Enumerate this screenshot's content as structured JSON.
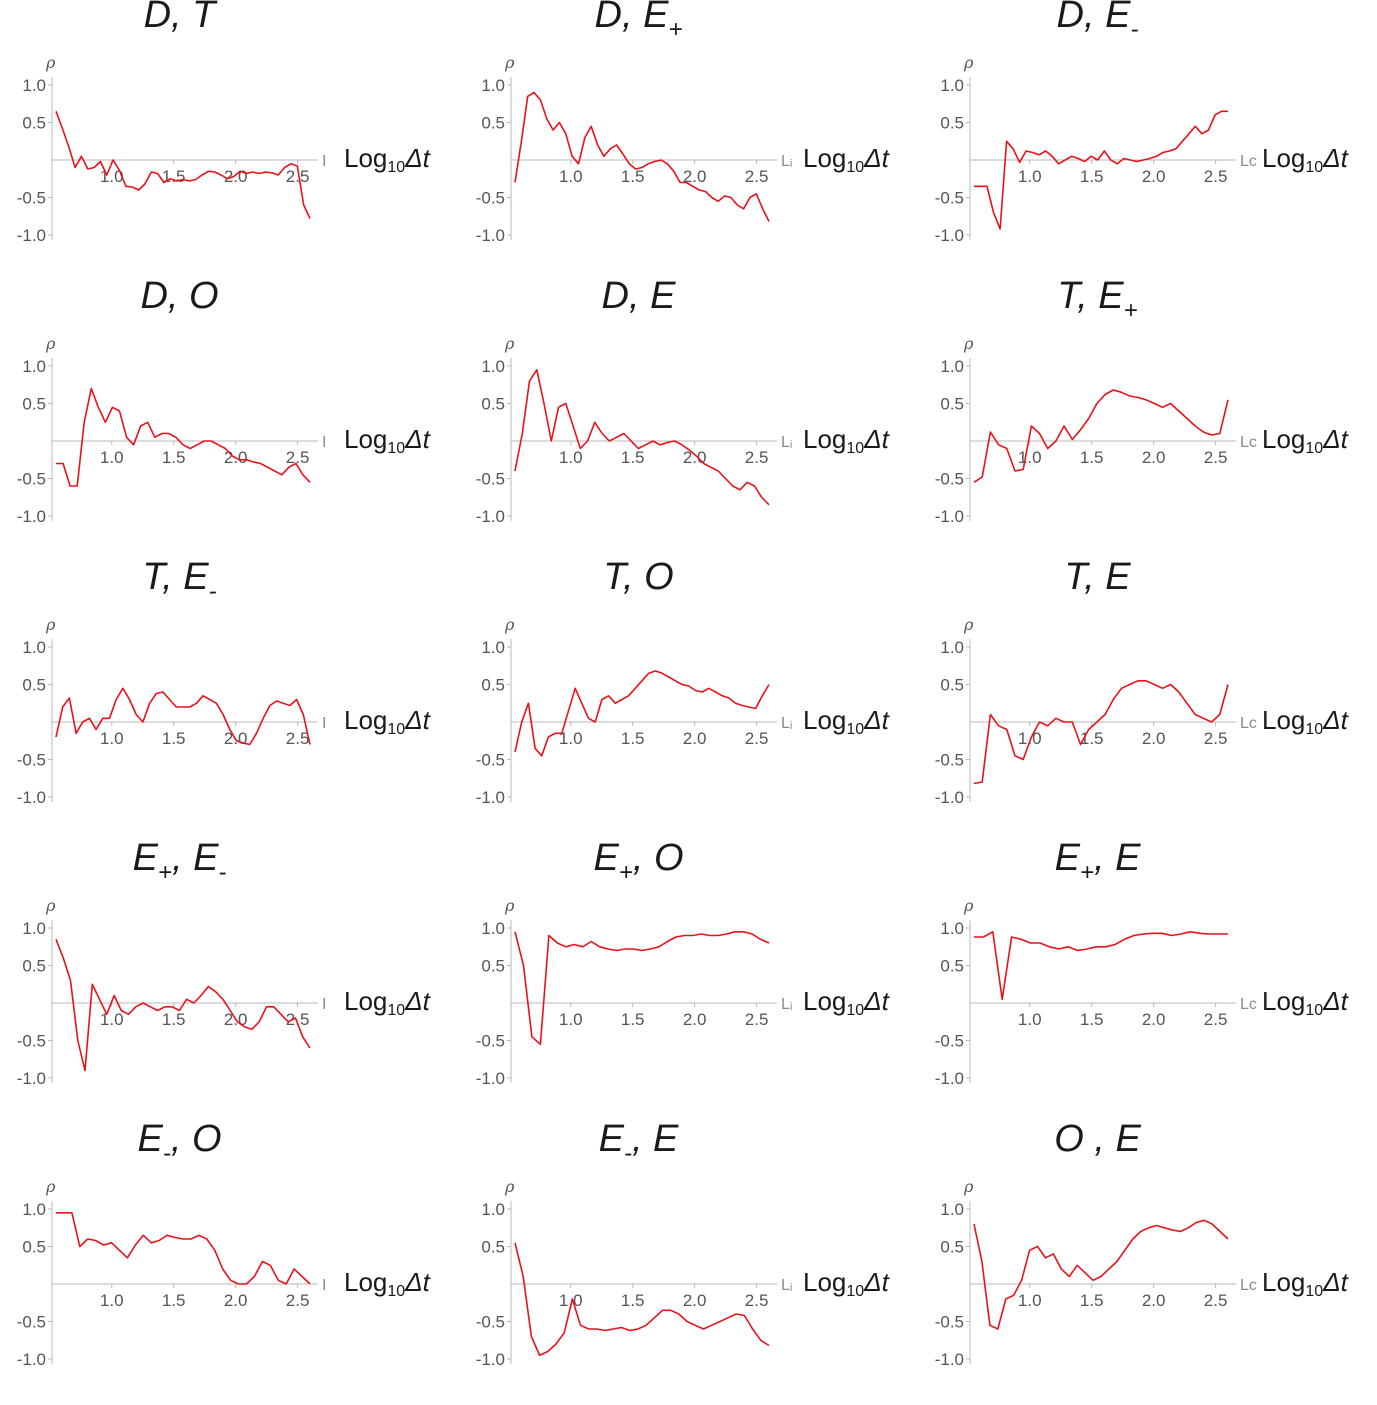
{
  "colors": {
    "series": "#e8121b",
    "axis": "#b9b9b9",
    "tick_text": "#555555"
  },
  "chart_data": [
    {
      "type": "line",
      "title_main": "D, T",
      "title_sub": "",
      "ylabel": "ρ",
      "xlabel_prefix": "Log",
      "xlabel_sub": "10",
      "xlabel_suffix": "Δt",
      "axis_cut_text": "I",
      "x_ticks": [
        "1.0",
        "1.5",
        "2.0",
        "2.5"
      ],
      "y_ticks": [
        "1.0",
        "0.5",
        "-0.5",
        "-1.0"
      ],
      "xlim": [
        0.55,
        2.6
      ],
      "ylim": [
        -1.0,
        1.0
      ],
      "series_color": "#e8121b",
      "y": [
        0.65,
        0.42,
        0.18,
        -0.1,
        0.05,
        -0.12,
        -0.1,
        -0.02,
        -0.2,
        0.0,
        -0.14,
        -0.35,
        -0.36,
        -0.4,
        -0.32,
        -0.16,
        -0.18,
        -0.3,
        -0.25,
        -0.28,
        -0.26,
        -0.28,
        -0.26,
        -0.2,
        -0.15,
        -0.16,
        -0.2,
        -0.25,
        -0.22,
        -0.15,
        -0.18,
        -0.16,
        -0.18,
        -0.16,
        -0.17,
        -0.2,
        -0.1,
        -0.05,
        -0.08,
        -0.6,
        -0.78
      ]
    },
    {
      "type": "line",
      "title_main": "D, E",
      "title_sub": "+",
      "ylabel": "ρ",
      "xlabel_prefix": "Log",
      "xlabel_sub": "10",
      "xlabel_suffix": "Δt",
      "axis_cut_text": "Lᵢ",
      "x_ticks": [
        "1.0",
        "1.5",
        "2.0",
        "2.5"
      ],
      "y_ticks": [
        "1.0",
        "0.5",
        "-0.5",
        "-1.0"
      ],
      "xlim": [
        0.55,
        2.6
      ],
      "ylim": [
        -1.0,
        1.0
      ],
      "series_color": "#e8121b",
      "y": [
        -0.3,
        0.25,
        0.85,
        0.9,
        0.8,
        0.55,
        0.4,
        0.5,
        0.35,
        0.05,
        -0.05,
        0.3,
        0.45,
        0.2,
        0.05,
        0.15,
        0.2,
        0.08,
        -0.05,
        -0.12,
        -0.1,
        -0.05,
        -0.02,
        0.0,
        -0.05,
        -0.15,
        -0.3,
        -0.3,
        -0.35,
        -0.4,
        -0.42,
        -0.5,
        -0.55,
        -0.48,
        -0.5,
        -0.6,
        -0.65,
        -0.5,
        -0.45,
        -0.65,
        -0.82
      ]
    },
    {
      "type": "line",
      "title_main": "D, E",
      "title_sub": "-",
      "ylabel": "ρ",
      "xlabel_prefix": "Log",
      "xlabel_sub": "10",
      "xlabel_suffix": "Δt",
      "axis_cut_text": "Lc",
      "x_ticks": [
        "1.0",
        "1.5",
        "2.0",
        "2.5"
      ],
      "y_ticks": [
        "1.0",
        "0.5",
        "-0.5",
        "-1.0"
      ],
      "xlim": [
        0.55,
        2.6
      ],
      "ylim": [
        -1.0,
        1.0
      ],
      "series_color": "#e8121b",
      "y": [
        -0.35,
        -0.35,
        -0.35,
        -0.7,
        -0.92,
        0.25,
        0.15,
        -0.03,
        0.12,
        0.1,
        0.07,
        0.12,
        0.05,
        -0.05,
        0.0,
        0.05,
        0.02,
        -0.02,
        0.05,
        0.0,
        0.12,
        0.0,
        -0.05,
        0.02,
        0.0,
        -0.02,
        0.0,
        0.02,
        0.05,
        0.1,
        0.12,
        0.15,
        0.25,
        0.35,
        0.45,
        0.35,
        0.4,
        0.6,
        0.65,
        0.65
      ]
    },
    {
      "type": "line",
      "title_main": "D, O",
      "title_sub": "",
      "ylabel": "ρ",
      "xlabel_prefix": "Log",
      "xlabel_sub": "10",
      "xlabel_suffix": "Δt",
      "axis_cut_text": "I",
      "x_ticks": [
        "1.0",
        "1.5",
        "2.0",
        "2.5"
      ],
      "y_ticks": [
        "1.0",
        "0.5",
        "-0.5",
        "-1.0"
      ],
      "xlim": [
        0.55,
        2.6
      ],
      "ylim": [
        -1.0,
        1.0
      ],
      "series_color": "#e8121b",
      "y": [
        -0.3,
        -0.3,
        -0.6,
        -0.6,
        0.25,
        0.7,
        0.45,
        0.25,
        0.45,
        0.4,
        0.05,
        -0.05,
        0.2,
        0.25,
        0.05,
        0.1,
        0.1,
        0.05,
        -0.05,
        -0.1,
        -0.05,
        0.0,
        0.0,
        -0.05,
        -0.1,
        -0.2,
        -0.25,
        -0.25,
        -0.28,
        -0.3,
        -0.35,
        -0.4,
        -0.45,
        -0.35,
        -0.3,
        -0.45,
        -0.55
      ]
    },
    {
      "type": "line",
      "title_main": "D, E",
      "title_sub": "",
      "ylabel": "ρ",
      "xlabel_prefix": "Log",
      "xlabel_sub": "10",
      "xlabel_suffix": "Δt",
      "axis_cut_text": "Lᵢ",
      "x_ticks": [
        "1.0",
        "1.5",
        "2.0",
        "2.5"
      ],
      "y_ticks": [
        "1.0",
        "0.5",
        "-0.5",
        "-1.0"
      ],
      "xlim": [
        0.55,
        2.6
      ],
      "ylim": [
        -1.0,
        1.0
      ],
      "series_color": "#e8121b",
      "y": [
        -0.4,
        0.1,
        0.8,
        0.95,
        0.5,
        0.0,
        0.45,
        0.5,
        0.2,
        -0.1,
        0.0,
        0.25,
        0.1,
        0.0,
        0.05,
        0.1,
        0.0,
        -0.1,
        -0.05,
        0.0,
        -0.05,
        -0.02,
        0.0,
        -0.05,
        -0.12,
        -0.2,
        -0.3,
        -0.35,
        -0.4,
        -0.5,
        -0.6,
        -0.65,
        -0.55,
        -0.6,
        -0.75,
        -0.85
      ]
    },
    {
      "type": "line",
      "title_main": "T, E",
      "title_sub": "+",
      "ylabel": "ρ",
      "xlabel_prefix": "Log",
      "xlabel_sub": "10",
      "xlabel_suffix": "Δt",
      "axis_cut_text": "Lc",
      "x_ticks": [
        "1.0",
        "1.5",
        "2.0",
        "2.5"
      ],
      "y_ticks": [
        "1.0",
        "0.5",
        "-0.5",
        "-1.0"
      ],
      "xlim": [
        0.55,
        2.6
      ],
      "ylim": [
        -1.0,
        1.0
      ],
      "series_color": "#e8121b",
      "y": [
        -0.55,
        -0.48,
        0.12,
        -0.05,
        -0.1,
        -0.4,
        -0.38,
        0.2,
        0.1,
        -0.1,
        0.0,
        0.2,
        0.02,
        0.15,
        0.3,
        0.5,
        0.62,
        0.68,
        0.65,
        0.6,
        0.58,
        0.55,
        0.5,
        0.45,
        0.5,
        0.4,
        0.3,
        0.2,
        0.12,
        0.08,
        0.1,
        0.55
      ]
    },
    {
      "type": "line",
      "title_main": "T, E",
      "title_sub": "-",
      "ylabel": "ρ",
      "xlabel_prefix": "Log",
      "xlabel_sub": "10",
      "xlabel_suffix": "Δt",
      "axis_cut_text": "I",
      "x_ticks": [
        "1.0",
        "1.5",
        "2.0",
        "2.5"
      ],
      "y_ticks": [
        "1.0",
        "0.5",
        "-0.5",
        "-1.0"
      ],
      "xlim": [
        0.55,
        2.6
      ],
      "ylim": [
        -1.0,
        1.0
      ],
      "series_color": "#e8121b",
      "y": [
        -0.2,
        0.2,
        0.32,
        -0.15,
        0.0,
        0.05,
        -0.1,
        0.05,
        0.05,
        0.3,
        0.45,
        0.3,
        0.1,
        0.0,
        0.25,
        0.38,
        0.4,
        0.3,
        0.2,
        0.2,
        0.2,
        0.25,
        0.35,
        0.3,
        0.25,
        0.1,
        -0.1,
        -0.25,
        -0.28,
        -0.3,
        -0.15,
        0.05,
        0.22,
        0.28,
        0.25,
        0.22,
        0.3,
        0.1,
        -0.3
      ]
    },
    {
      "type": "line",
      "title_main": "T, O",
      "title_sub": "",
      "ylabel": "ρ",
      "xlabel_prefix": "Log",
      "xlabel_sub": "10",
      "xlabel_suffix": "Δt",
      "axis_cut_text": "Lᵢ",
      "x_ticks": [
        "1.0",
        "1.5",
        "2.0",
        "2.5"
      ],
      "y_ticks": [
        "1.0",
        "0.5",
        "-0.5",
        "-1.0"
      ],
      "xlim": [
        0.55,
        2.6
      ],
      "ylim": [
        -1.0,
        1.0
      ],
      "series_color": "#e8121b",
      "y": [
        -0.4,
        0.0,
        0.25,
        -0.35,
        -0.45,
        -0.2,
        -0.15,
        -0.15,
        0.15,
        0.45,
        0.25,
        0.05,
        0.0,
        0.3,
        0.35,
        0.25,
        0.3,
        0.35,
        0.45,
        0.55,
        0.65,
        0.68,
        0.65,
        0.6,
        0.55,
        0.5,
        0.48,
        0.42,
        0.4,
        0.45,
        0.4,
        0.35,
        0.32,
        0.25,
        0.22,
        0.2,
        0.18,
        0.35,
        0.5
      ]
    },
    {
      "type": "line",
      "title_main": "T, E",
      "title_sub": "",
      "ylabel": "ρ",
      "xlabel_prefix": "Log",
      "xlabel_sub": "10",
      "xlabel_suffix": "Δt",
      "axis_cut_text": "Lc",
      "x_ticks": [
        "1.0",
        "1.5",
        "2.0",
        "2.5"
      ],
      "y_ticks": [
        "1.0",
        "0.5",
        "-0.5",
        "-1.0"
      ],
      "xlim": [
        0.55,
        2.6
      ],
      "ylim": [
        -1.0,
        1.0
      ],
      "series_color": "#e8121b",
      "y": [
        -0.82,
        -0.8,
        0.1,
        -0.05,
        -0.1,
        -0.45,
        -0.5,
        -0.2,
        0.0,
        -0.05,
        0.05,
        0.0,
        0.0,
        -0.3,
        -0.1,
        0.0,
        0.1,
        0.3,
        0.45,
        0.5,
        0.55,
        0.55,
        0.5,
        0.45,
        0.5,
        0.4,
        0.25,
        0.1,
        0.05,
        0.0,
        0.1,
        0.5
      ]
    },
    {
      "type": "line",
      "title_main": "E",
      "title_sub": "+",
      "title_main2": ", E",
      "title_sub2": "-",
      "ylabel": "ρ",
      "xlabel_prefix": "Log",
      "xlabel_sub": "10",
      "xlabel_suffix": "Δt",
      "axis_cut_text": "I",
      "x_ticks": [
        "1.0",
        "1.5",
        "2.0",
        "2.5"
      ],
      "y_ticks": [
        "1.0",
        "0.5",
        "-0.5",
        "-1.0"
      ],
      "xlim": [
        0.55,
        2.6
      ],
      "ylim": [
        -1.0,
        1.0
      ],
      "series_color": "#e8121b",
      "y": [
        0.85,
        0.6,
        0.3,
        -0.5,
        -0.9,
        0.25,
        0.05,
        -0.15,
        0.1,
        -0.1,
        -0.15,
        -0.05,
        0.0,
        -0.05,
        -0.1,
        -0.05,
        -0.05,
        -0.1,
        0.05,
        0.0,
        0.1,
        0.22,
        0.15,
        0.05,
        -0.1,
        -0.25,
        -0.32,
        -0.35,
        -0.25,
        -0.05,
        -0.05,
        -0.15,
        -0.25,
        -0.2,
        -0.45,
        -0.6
      ]
    },
    {
      "type": "line",
      "title_main": "E",
      "title_sub": "+",
      "title_main2": ", O",
      "title_sub2": "",
      "ylabel": "ρ",
      "xlabel_prefix": "Log",
      "xlabel_sub": "10",
      "xlabel_suffix": "Δt",
      "axis_cut_text": "Lᵢ",
      "x_ticks": [
        "1.0",
        "1.5",
        "2.0",
        "2.5"
      ],
      "y_ticks": [
        "1.0",
        "0.5",
        "-0.5",
        "-1.0"
      ],
      "xlim": [
        0.55,
        2.6
      ],
      "ylim": [
        -1.0,
        1.0
      ],
      "series_color": "#e8121b",
      "y": [
        0.95,
        0.5,
        -0.45,
        -0.55,
        0.9,
        0.8,
        0.75,
        0.78,
        0.75,
        0.82,
        0.75,
        0.72,
        0.7,
        0.72,
        0.72,
        0.7,
        0.72,
        0.75,
        0.82,
        0.88,
        0.9,
        0.9,
        0.92,
        0.9,
        0.9,
        0.92,
        0.95,
        0.95,
        0.92,
        0.85,
        0.8
      ]
    },
    {
      "type": "line",
      "title_main": "E",
      "title_sub": "+",
      "title_main2": ", E",
      "title_sub2": "",
      "ylabel": "ρ",
      "xlabel_prefix": "Log",
      "xlabel_sub": "10",
      "xlabel_suffix": "Δt",
      "axis_cut_text": "Lc",
      "x_ticks": [
        "1.0",
        "1.5",
        "2.0",
        "2.5"
      ],
      "y_ticks": [
        "1.0",
        "0.5",
        "-0.5",
        "-1.0"
      ],
      "xlim": [
        0.55,
        2.6
      ],
      "ylim": [
        -1.0,
        1.0
      ],
      "series_color": "#e8121b",
      "y": [
        0.88,
        0.88,
        0.95,
        0.05,
        0.88,
        0.85,
        0.8,
        0.8,
        0.75,
        0.72,
        0.75,
        0.7,
        0.72,
        0.75,
        0.75,
        0.78,
        0.85,
        0.9,
        0.92,
        0.93,
        0.93,
        0.9,
        0.92,
        0.95,
        0.93,
        0.92,
        0.92,
        0.92
      ]
    },
    {
      "type": "line",
      "title_main": "E",
      "title_sub": "-",
      "title_main2": ", O",
      "title_sub2": "",
      "ylabel": "ρ",
      "xlabel_prefix": "Log",
      "xlabel_sub": "10",
      "xlabel_suffix": "Δt",
      "axis_cut_text": "I",
      "x_ticks": [
        "1.0",
        "1.5",
        "2.0",
        "2.5"
      ],
      "y_ticks": [
        "1.0",
        "0.5",
        "-0.5",
        "-1.0"
      ],
      "xlim": [
        0.55,
        2.6
      ],
      "ylim": [
        -1.0,
        1.0
      ],
      "series_color": "#e8121b",
      "y": [
        0.95,
        0.95,
        0.95,
        0.5,
        0.6,
        0.58,
        0.52,
        0.55,
        0.45,
        0.35,
        0.52,
        0.65,
        0.55,
        0.58,
        0.65,
        0.62,
        0.6,
        0.6,
        0.65,
        0.6,
        0.45,
        0.2,
        0.05,
        0.0,
        0.0,
        0.1,
        0.3,
        0.25,
        0.05,
        0.0,
        0.2,
        0.1,
        0.0
      ]
    },
    {
      "type": "line",
      "title_main": "E",
      "title_sub": "-",
      "title_main2": ", E",
      "title_sub2": "",
      "ylabel": "ρ",
      "xlabel_prefix": "Log",
      "xlabel_sub": "10",
      "xlabel_suffix": "Δt",
      "axis_cut_text": "Lᵢ",
      "x_ticks": [
        "1.0",
        "1.5",
        "2.0",
        "2.5"
      ],
      "y_ticks": [
        "1.0",
        "0.5",
        "-0.5",
        "-1.0"
      ],
      "xlim": [
        0.55,
        2.6
      ],
      "ylim": [
        -1.0,
        1.0
      ],
      "series_color": "#e8121b",
      "y": [
        0.55,
        0.1,
        -0.7,
        -0.95,
        -0.9,
        -0.8,
        -0.65,
        -0.2,
        -0.55,
        -0.6,
        -0.6,
        -0.62,
        -0.6,
        -0.58,
        -0.62,
        -0.6,
        -0.55,
        -0.45,
        -0.35,
        -0.35,
        -0.4,
        -0.5,
        -0.55,
        -0.6,
        -0.55,
        -0.5,
        -0.45,
        -0.4,
        -0.42,
        -0.6,
        -0.75,
        -0.82
      ]
    },
    {
      "type": "line",
      "title_main": "O",
      "title_sub": "",
      "title_main2": " , E",
      "title_sub2": "",
      "ylabel": "ρ",
      "xlabel_prefix": "Log",
      "xlabel_sub": "10",
      "xlabel_suffix": "Δt",
      "axis_cut_text": "Lc",
      "x_ticks": [
        "1.0",
        "1.5",
        "2.0",
        "2.5"
      ],
      "y_ticks": [
        "1.0",
        "0.5",
        "-0.5",
        "-1.0"
      ],
      "xlim": [
        0.55,
        2.6
      ],
      "ylim": [
        -1.0,
        1.0
      ],
      "series_color": "#e8121b",
      "y": [
        0.8,
        0.3,
        -0.55,
        -0.6,
        -0.2,
        -0.15,
        0.05,
        0.45,
        0.5,
        0.35,
        0.4,
        0.2,
        0.1,
        0.25,
        0.15,
        0.05,
        0.1,
        0.2,
        0.3,
        0.45,
        0.6,
        0.7,
        0.75,
        0.78,
        0.75,
        0.72,
        0.7,
        0.75,
        0.82,
        0.85,
        0.8,
        0.7,
        0.6
      ]
    }
  ]
}
